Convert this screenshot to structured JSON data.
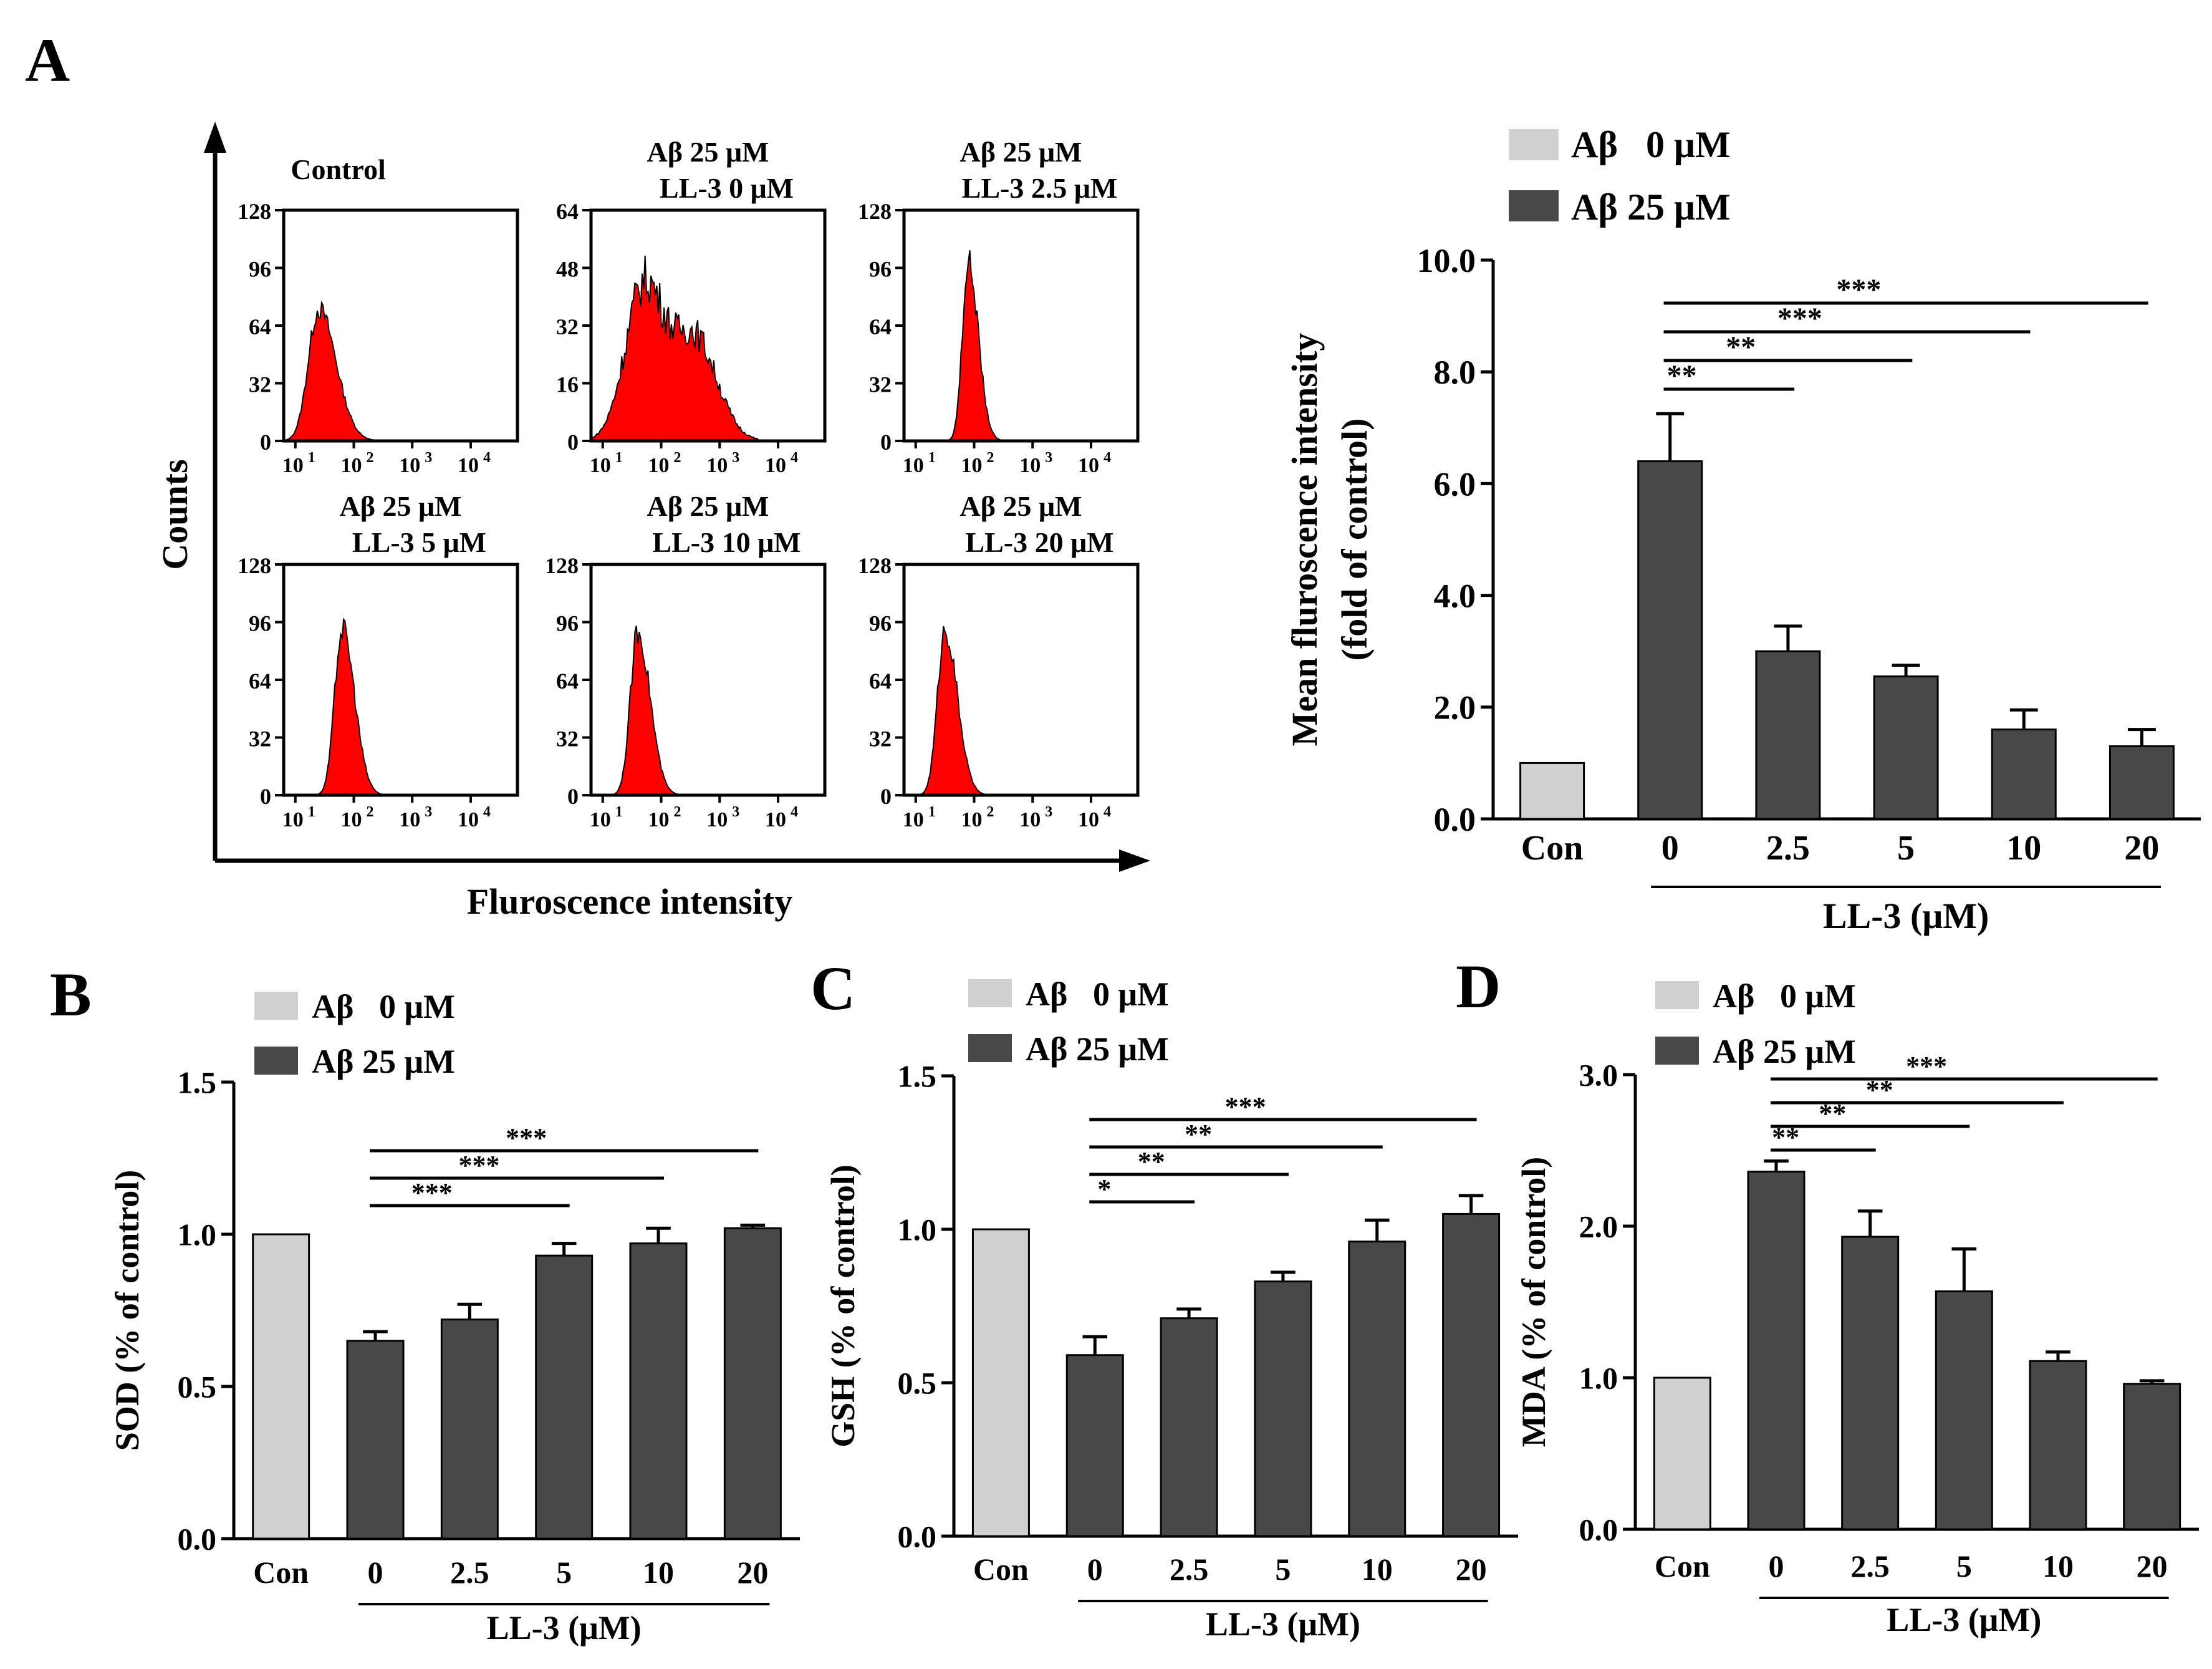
{
  "panel_labels": {
    "a": "A",
    "b": "B",
    "c": "C",
    "d": "D"
  },
  "flow": {
    "y_axis_label": "Counts",
    "x_axis_label": "Fluroscence intensity",
    "x_ticks": [
      "10",
      "10",
      "10",
      "10"
    ],
    "x_tick_powers": [
      "1",
      "2",
      "3",
      "4"
    ],
    "histograms": [
      {
        "title1": "Control",
        "title2": "",
        "y_ticks": [
          "0",
          "32",
          "64",
          "96",
          "128"
        ],
        "ymax": 128,
        "peak_log": 1.4,
        "peak_count": 75,
        "width": 0.28
      },
      {
        "title1": "Aβ 25 μM",
        "title2": "LL-3 0 μM",
        "y_ticks": [
          "0",
          "16",
          "32",
          "48",
          "64"
        ],
        "ymax": 64,
        "peak_log": 1.7,
        "peak_count": 42,
        "width": 0.6
      },
      {
        "title1": "Aβ 25 μM",
        "title2": "LL-3 2.5 μM",
        "y_ticks": [
          "0",
          "32",
          "64",
          "96",
          "128"
        ],
        "ymax": 128,
        "peak_log": 1.9,
        "peak_count": 102,
        "width": 0.16
      },
      {
        "title1": "Aβ 25 μM",
        "title2": "LL-3 5 μM",
        "y_ticks": [
          "0",
          "32",
          "64",
          "96",
          "128"
        ],
        "ymax": 128,
        "peak_log": 1.8,
        "peak_count": 95,
        "width": 0.2
      },
      {
        "title1": "Aβ 25 μM",
        "title2": "LL-3 10 μM",
        "y_ticks": [
          "0",
          "32",
          "64",
          "96",
          "128"
        ],
        "ymax": 128,
        "peak_log": 1.6,
        "peak_count": 93,
        "width": 0.2
      },
      {
        "title1": "Aβ 25 μM",
        "title2": "LL-3 20 μM",
        "y_ticks": [
          "0",
          "32",
          "64",
          "96",
          "128"
        ],
        "ymax": 128,
        "peak_log": 1.5,
        "peak_count": 94,
        "width": 0.2
      }
    ]
  },
  "legend": {
    "a0": "Aβ   0 μM",
    "a25": "Aβ 25 μM"
  },
  "colors": {
    "light": "#d0d0d0",
    "dark": "#484848",
    "histogram": "#ff0000"
  },
  "chart_data": [
    {
      "id": "A",
      "type": "bar",
      "categories": [
        "Con",
        "0",
        "2.5",
        "5",
        "10",
        "20"
      ],
      "values": [
        1.0,
        6.4,
        3.0,
        2.55,
        1.6,
        1.3
      ],
      "errors": [
        0,
        0.85,
        0.45,
        0.2,
        0.35,
        0.3
      ],
      "ylabel_line1": "Mean fluroscence intensity",
      "ylabel_line2": "(fold of control)",
      "xlabel": "LL-3 (μM)",
      "ylim": [
        0,
        10
      ],
      "y_ticks": [
        "0.0",
        "2.0",
        "4.0",
        "6.0",
        "8.0",
        "10.0"
      ],
      "y_tick_values": [
        0,
        2,
        4,
        6,
        8,
        10
      ],
      "significance": [
        {
          "from": 1,
          "to": 2,
          "label": "**"
        },
        {
          "from": 1,
          "to": 3,
          "label": "**"
        },
        {
          "from": 1,
          "to": 4,
          "label": "***"
        },
        {
          "from": 1,
          "to": 5,
          "label": "***"
        }
      ]
    },
    {
      "id": "B",
      "type": "bar",
      "categories": [
        "Con",
        "0",
        "2.5",
        "5",
        "10",
        "20"
      ],
      "values": [
        1.0,
        0.65,
        0.72,
        0.93,
        0.97,
        1.02
      ],
      "errors": [
        0,
        0.03,
        0.05,
        0.04,
        0.05,
        0.01
      ],
      "ylabel": "SOD (% of control)",
      "xlabel": "LL-3 (μM)",
      "ylim": [
        0,
        1.5
      ],
      "y_ticks": [
        "0.0",
        "0.5",
        "1.0",
        "1.5"
      ],
      "y_tick_values": [
        0,
        0.5,
        1,
        1.5
      ],
      "significance": [
        {
          "from": 1,
          "to": 3,
          "label": "***"
        },
        {
          "from": 1,
          "to": 4,
          "label": "***"
        },
        {
          "from": 1,
          "to": 5,
          "label": "***"
        }
      ]
    },
    {
      "id": "C",
      "type": "bar",
      "categories": [
        "Con",
        "0",
        "2.5",
        "5",
        "10",
        "20"
      ],
      "values": [
        1.0,
        0.59,
        0.71,
        0.83,
        0.96,
        1.05
      ],
      "errors": [
        0,
        0.06,
        0.03,
        0.03,
        0.07,
        0.06
      ],
      "ylabel": "GSH (% of control)",
      "xlabel": "LL-3 (μM)",
      "ylim": [
        0,
        1.5
      ],
      "y_ticks": [
        "0.0",
        "0.5",
        "1.0",
        "1.5"
      ],
      "y_tick_values": [
        0,
        0.5,
        1,
        1.5
      ],
      "significance": [
        {
          "from": 1,
          "to": 2,
          "label": "*"
        },
        {
          "from": 1,
          "to": 3,
          "label": "**"
        },
        {
          "from": 1,
          "to": 4,
          "label": "**"
        },
        {
          "from": 1,
          "to": 5,
          "label": "***"
        }
      ]
    },
    {
      "id": "D",
      "type": "bar",
      "categories": [
        "Con",
        "0",
        "2.5",
        "5",
        "10",
        "20"
      ],
      "values": [
        1.0,
        2.36,
        1.93,
        1.57,
        1.11,
        0.96
      ],
      "errors": [
        0,
        0.07,
        0.17,
        0.28,
        0.06,
        0.02
      ],
      "ylabel": "MDA (% of control)",
      "xlabel": "LL-3 (μM)",
      "ylim": [
        0,
        3
      ],
      "y_ticks": [
        "0.0",
        "1.0",
        "2.0",
        "3.0"
      ],
      "y_tick_values": [
        0,
        1,
        2,
        3
      ],
      "significance": [
        {
          "from": 1,
          "to": 2,
          "label": "**"
        },
        {
          "from": 1,
          "to": 3,
          "label": "**"
        },
        {
          "from": 1,
          "to": 4,
          "label": "**"
        },
        {
          "from": 1,
          "to": 5,
          "label": "***"
        }
      ]
    }
  ]
}
